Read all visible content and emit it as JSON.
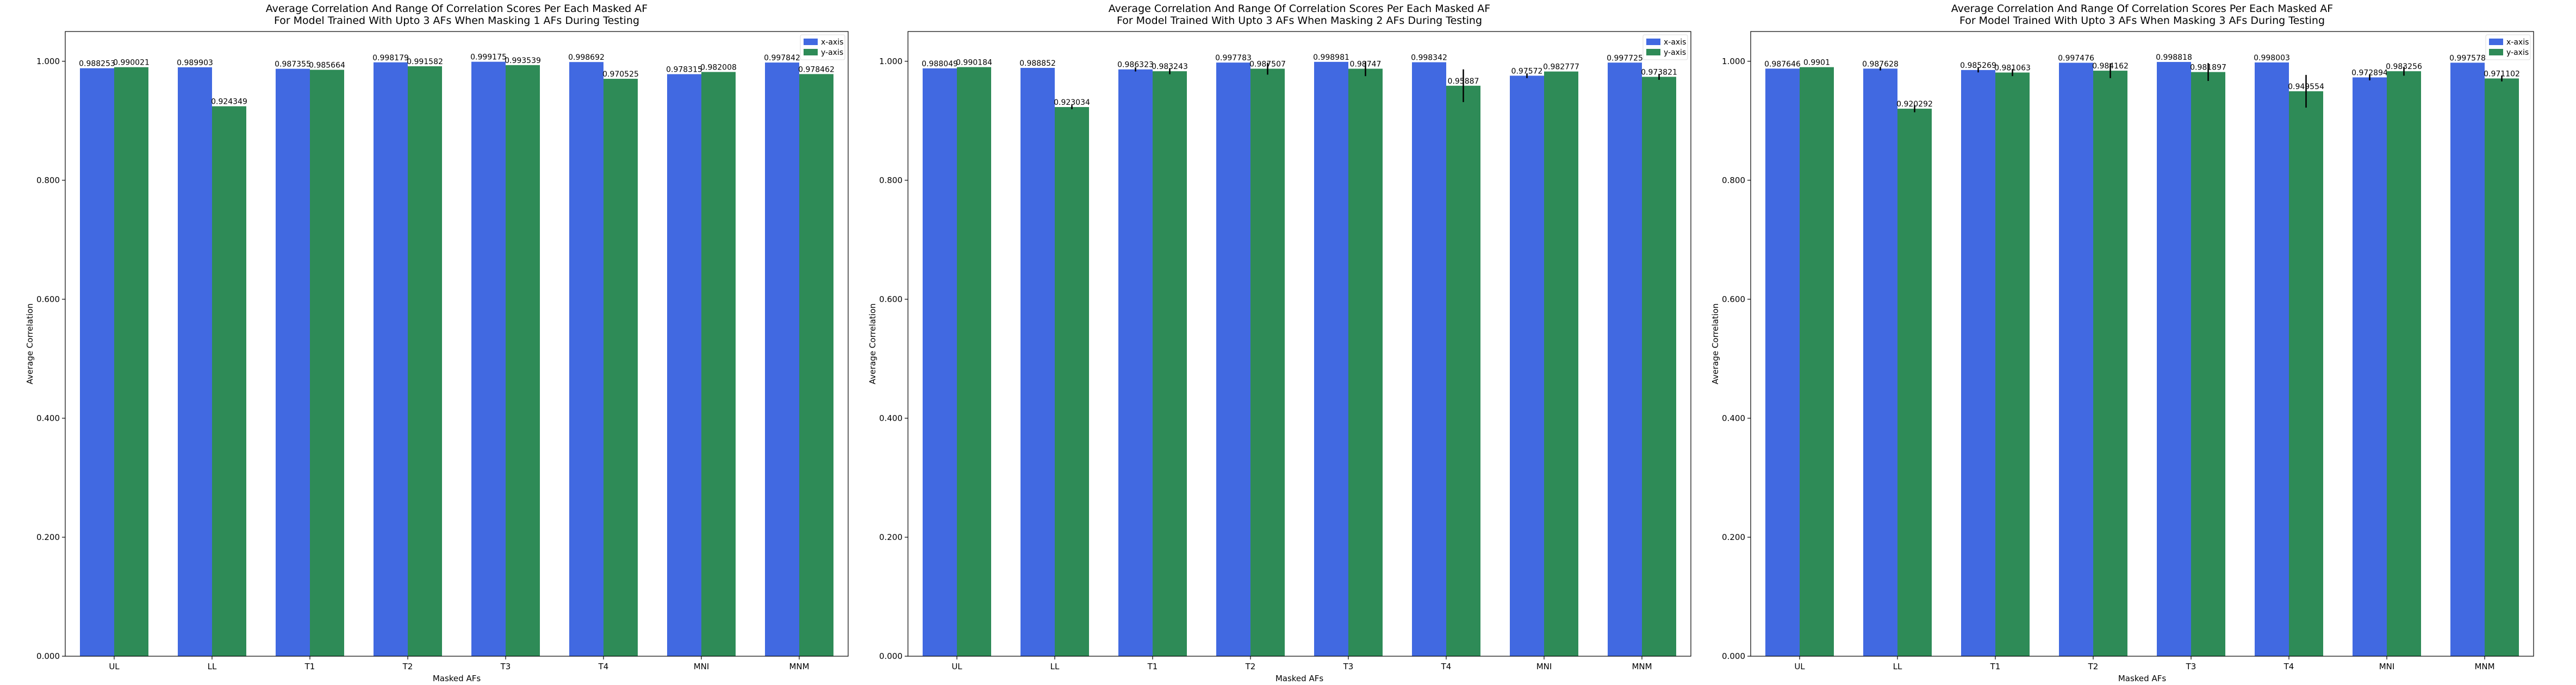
{
  "chart_data": [
    {
      "type": "bar",
      "title": "Average Correlation And Range Of Correlation Scores Per Each Masked AF",
      "subtitle": "For Model Trained With Upto 3 AFs When Masking 1 AFs During Testing",
      "xlabel": "Masked AFs",
      "ylabel": "Average Correlation",
      "ylim": [
        0,
        1.05
      ],
      "yticks": [
        "0.000",
        "0.200",
        "0.400",
        "0.600",
        "0.800",
        "1.000"
      ],
      "categories": [
        "UL",
        "LL",
        "T1",
        "T2",
        "T3",
        "T4",
        "MNI",
        "MNM"
      ],
      "series": [
        {
          "name": "x-axis",
          "values": [
            0.988253,
            0.989903,
            0.987355,
            0.998179,
            0.999175,
            0.998692,
            0.978315,
            0.997842
          ],
          "labels": [
            "0.988253",
            "0.989903",
            "0.987355",
            "0.998179",
            "0.999175",
            "0.998692",
            "0.978315",
            "0.997842"
          ],
          "err": [
            0,
            0,
            0,
            0,
            0,
            0,
            0,
            0
          ]
        },
        {
          "name": "y-axis",
          "values": [
            0.990021,
            0.924349,
            0.985664,
            0.991582,
            0.993539,
            0.970525,
            0.982008,
            0.978462
          ],
          "labels": [
            "0.990021",
            "0.924349",
            "0.985664",
            "0.991582",
            "0.993539",
            "0.970525",
            "0.982008",
            "0.978462"
          ],
          "err": [
            0,
            0,
            0,
            0,
            0,
            0,
            0,
            0
          ]
        }
      ],
      "legend": "top-right",
      "grid": false
    },
    {
      "type": "bar",
      "title": "Average Correlation And Range Of Correlation Scores Per Each Masked AF",
      "subtitle": "For Model Trained With Upto 3 AFs When Masking 2 AFs During Testing",
      "xlabel": "Masked AFs",
      "ylabel": "Average Correlation",
      "ylim": [
        0,
        1.05
      ],
      "yticks": [
        "0.000",
        "0.200",
        "0.400",
        "0.600",
        "0.800",
        "1.000"
      ],
      "categories": [
        "UL",
        "LL",
        "T1",
        "T2",
        "T3",
        "T4",
        "MNI",
        "MNM"
      ],
      "series": [
        {
          "name": "x-axis",
          "values": [
            0.988049,
            0.988852,
            0.986323,
            0.997783,
            0.998981,
            0.998342,
            0.97572,
            0.997725
          ],
          "labels": [
            "0.988049",
            "0.988852",
            "0.986323",
            "0.997783",
            "0.998981",
            "0.998342",
            "0.97572",
            "0.997725"
          ],
          "err": [
            0,
            0,
            0.007,
            0,
            0,
            0,
            0.008,
            0
          ]
        },
        {
          "name": "y-axis",
          "values": [
            0.990184,
            0.923034,
            0.983243,
            0.987507,
            0.98747,
            0.95887,
            0.982777,
            0.973821
          ],
          "labels": [
            "0.990184",
            "0.923034",
            "0.983243",
            "0.987507",
            "0.98747",
            "0.95887",
            "0.982777",
            "0.973821"
          ],
          "err": [
            0,
            0.007,
            0.01,
            0.02,
            0.025,
            0.055,
            0,
            0.01
          ]
        }
      ],
      "legend": "top-right",
      "grid": false
    },
    {
      "type": "bar",
      "title": "Average Correlation And Range Of Correlation Scores Per Each Masked AF",
      "subtitle": "For Model Trained With Upto 3 AFs When Masking 3 AFs During Testing",
      "xlabel": "Masked AFs",
      "ylabel": "Average Correlation",
      "ylim": [
        0,
        1.05
      ],
      "yticks": [
        "0.000",
        "0.200",
        "0.400",
        "0.600",
        "0.800",
        "1.000"
      ],
      "categories": [
        "UL",
        "LL",
        "T1",
        "T2",
        "T3",
        "T4",
        "MNI",
        "MNM"
      ],
      "series": [
        {
          "name": "x-axis",
          "values": [
            0.987646,
            0.987628,
            0.985269,
            0.997476,
            0.998818,
            0.998003,
            0.972894,
            0.997578
          ],
          "labels": [
            "0.987646",
            "0.987628",
            "0.985269",
            "0.997476",
            "0.998818",
            "0.998003",
            "0.972894",
            "0.997578"
          ],
          "err": [
            0,
            0.006,
            0.008,
            0,
            0,
            0,
            0.01,
            0
          ]
        },
        {
          "name": "y-axis",
          "values": [
            0.9901,
            0.920292,
            0.981063,
            0.984162,
            0.981897,
            0.949554,
            0.983256,
            0.971102
          ],
          "labels": [
            "0.9901",
            "0.920292",
            "0.981063",
            "0.984162",
            "0.981897",
            "0.949554",
            "0.983256",
            "0.971102"
          ],
          "err": [
            0,
            0.012,
            0.012,
            0.025,
            0.03,
            0.055,
            0.015,
            0.01
          ]
        }
      ],
      "legend": "top-right",
      "grid": false
    }
  ],
  "colors": {
    "x-axis": "#4169e1",
    "y-axis": "#2e8b57"
  }
}
